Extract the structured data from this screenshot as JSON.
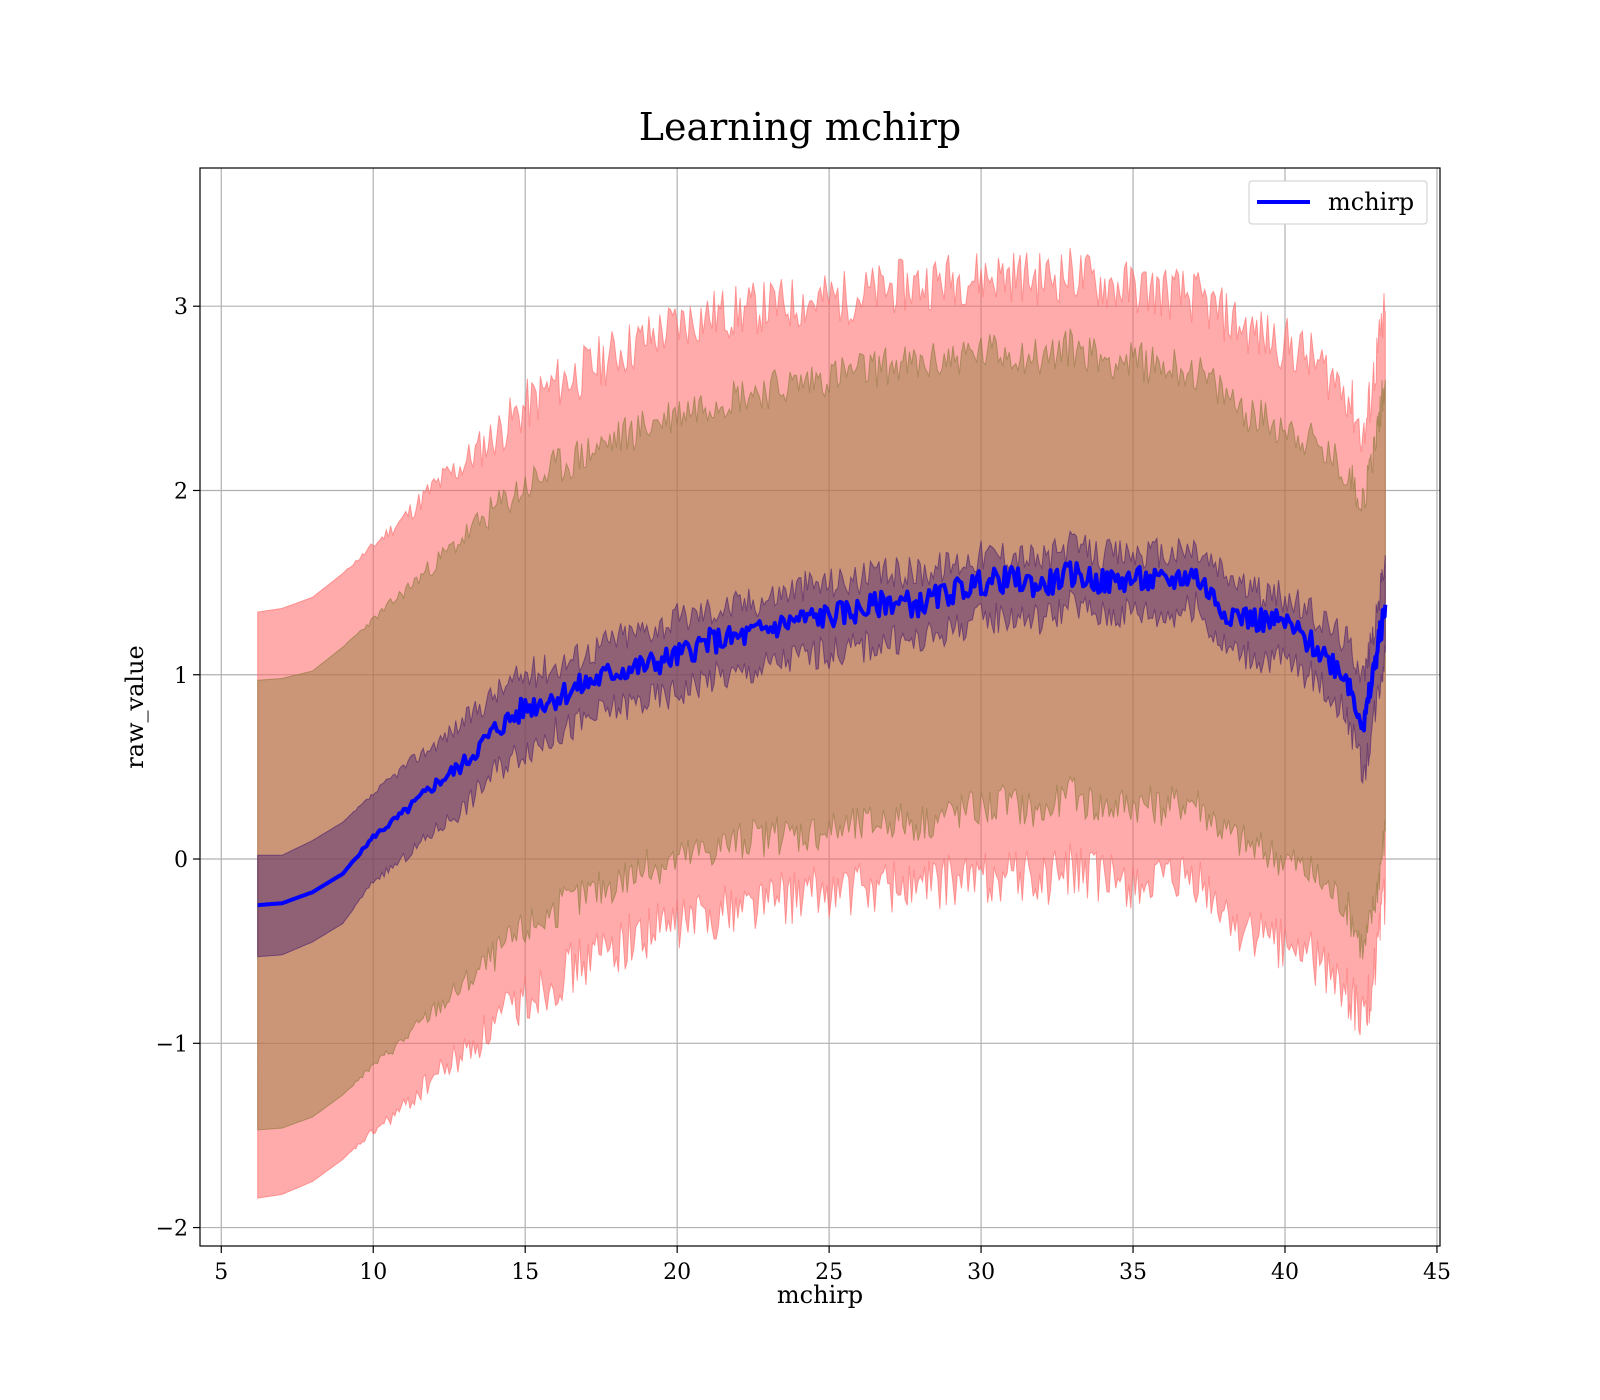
{
  "chart_data": {
    "type": "line",
    "title": "Learning mchirp",
    "xlabel": "mchirp",
    "ylabel": "raw_value",
    "xlim": [
      4.3,
      45.1
    ],
    "ylim": [
      -2.1,
      3.75
    ],
    "xticks": [
      5,
      10,
      15,
      20,
      25,
      30,
      35,
      40,
      45
    ],
    "yticks": [
      -2,
      -1,
      0,
      1,
      2,
      3
    ],
    "ytick_labels": [
      "−2",
      "−1",
      "0",
      "1",
      "2",
      "3"
    ],
    "grid": true,
    "legend_position": "top-right",
    "colors": {
      "line": "#0000ff",
      "outer_band": "#ff6666",
      "mid_band": "#8b7a3a",
      "inner_band": "#4a1f6e",
      "grid": "#b0b0b0"
    },
    "series": [
      {
        "name": "mchirp",
        "x": [
          6.2,
          7,
          8,
          9,
          10,
          11,
          12,
          13,
          14,
          15,
          16,
          17,
          18,
          19,
          20,
          21,
          22,
          23,
          24,
          25,
          26,
          27,
          28,
          29,
          30,
          31,
          32,
          33,
          34,
          35,
          36,
          37,
          38,
          39,
          40,
          41,
          42,
          42.6,
          43,
          43.3
        ],
        "y": [
          -0.25,
          -0.24,
          -0.18,
          -0.08,
          0.12,
          0.25,
          0.4,
          0.52,
          0.7,
          0.82,
          0.88,
          0.95,
          1.02,
          1.05,
          1.1,
          1.18,
          1.2,
          1.25,
          1.3,
          1.32,
          1.35,
          1.4,
          1.38,
          1.45,
          1.5,
          1.52,
          1.48,
          1.55,
          1.5,
          1.52,
          1.5,
          1.55,
          1.35,
          1.3,
          1.28,
          1.15,
          1.0,
          0.72,
          1.1,
          1.38
        ]
      }
    ],
    "bands": {
      "outer_upper": [
        1.34,
        1.36,
        1.42,
        1.55,
        1.7,
        1.85,
        2.02,
        2.15,
        2.3,
        2.45,
        2.58,
        2.65,
        2.75,
        2.82,
        2.9,
        2.95,
        2.97,
        3.0,
        3.02,
        3.04,
        3.06,
        3.1,
        3.12,
        3.15,
        3.16,
        3.17,
        3.15,
        3.18,
        3.12,
        3.1,
        3.08,
        3.05,
        2.95,
        2.85,
        2.8,
        2.7,
        2.55,
        2.28,
        2.7,
        2.97
      ],
      "mid_upper": [
        0.97,
        0.98,
        1.02,
        1.15,
        1.3,
        1.45,
        1.6,
        1.75,
        1.9,
        2.02,
        2.12,
        2.2,
        2.28,
        2.35,
        2.42,
        2.48,
        2.52,
        2.55,
        2.58,
        2.62,
        2.65,
        2.68,
        2.68,
        2.72,
        2.75,
        2.75,
        2.72,
        2.78,
        2.72,
        2.7,
        2.68,
        2.65,
        2.52,
        2.4,
        2.35,
        2.25,
        2.1,
        1.95,
        2.3,
        2.6
      ],
      "inner_upper": [
        0.02,
        0.02,
        0.1,
        0.2,
        0.35,
        0.5,
        0.62,
        0.75,
        0.9,
        1.0,
        1.05,
        1.12,
        1.2,
        1.25,
        1.3,
        1.35,
        1.38,
        1.42,
        1.48,
        1.5,
        1.52,
        1.55,
        1.56,
        1.6,
        1.65,
        1.66,
        1.62,
        1.7,
        1.65,
        1.66,
        1.65,
        1.68,
        1.55,
        1.45,
        1.42,
        1.32,
        1.2,
        1.0,
        1.3,
        1.65
      ],
      "inner_lower": [
        -0.53,
        -0.52,
        -0.45,
        -0.35,
        -0.12,
        0.0,
        0.15,
        0.28,
        0.48,
        0.6,
        0.68,
        0.75,
        0.82,
        0.86,
        0.9,
        0.98,
        1.0,
        1.05,
        1.1,
        1.12,
        1.15,
        1.18,
        1.18,
        1.25,
        1.3,
        1.32,
        1.3,
        1.38,
        1.32,
        1.35,
        1.32,
        1.38,
        1.15,
        1.1,
        1.08,
        0.98,
        0.8,
        0.45,
        0.85,
        1.12
      ],
      "mid_lower": [
        -1.47,
        -1.46,
        -1.4,
        -1.28,
        -1.12,
        -0.98,
        -0.82,
        -0.68,
        -0.52,
        -0.38,
        -0.28,
        -0.2,
        -0.12,
        -0.05,
        0.0,
        0.05,
        0.1,
        0.12,
        0.14,
        0.16,
        0.18,
        0.22,
        0.2,
        0.25,
        0.28,
        0.3,
        0.25,
        0.35,
        0.28,
        0.3,
        0.28,
        0.32,
        0.15,
        0.05,
        0.0,
        -0.1,
        -0.25,
        -0.5,
        -0.2,
        0.15
      ],
      "outer_lower": [
        -1.84,
        -1.82,
        -1.75,
        -1.63,
        -1.48,
        -1.35,
        -1.18,
        -1.05,
        -0.9,
        -0.75,
        -0.65,
        -0.55,
        -0.47,
        -0.4,
        -0.35,
        -0.3,
        -0.25,
        -0.22,
        -0.2,
        -0.18,
        -0.16,
        -0.14,
        -0.15,
        -0.12,
        -0.1,
        -0.08,
        -0.12,
        -0.05,
        -0.12,
        -0.12,
        -0.15,
        -0.12,
        -0.3,
        -0.42,
        -0.45,
        -0.55,
        -0.7,
        -0.9,
        -0.55,
        -0.2
      ]
    }
  }
}
